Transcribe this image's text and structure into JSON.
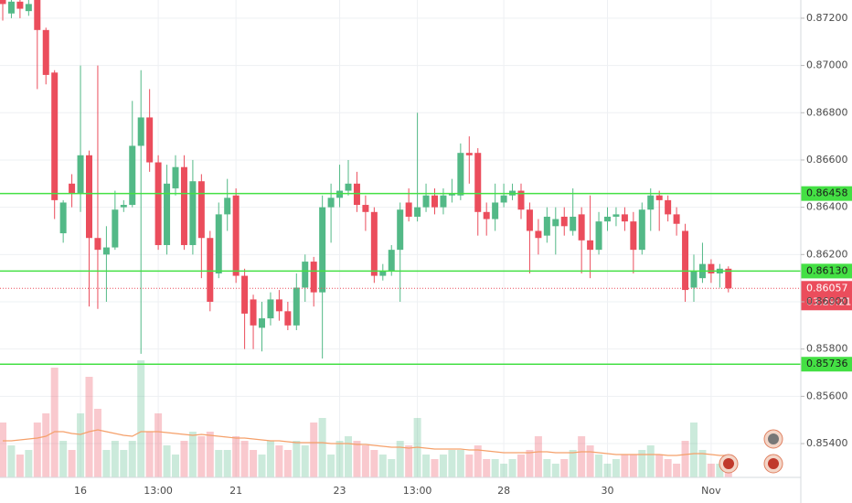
{
  "chart_data": {
    "type": "candlestick",
    "up_color": "#53b987",
    "down_color": "#eb4d5c",
    "level_color": "#44e044",
    "grid": true,
    "ylim": [
      0.85257,
      0.87277
    ],
    "yticks": [
      {
        "value": 0.872,
        "label": "0.87200"
      },
      {
        "value": 0.87,
        "label": "0.87000"
      },
      {
        "value": 0.868,
        "label": "0.86800"
      },
      {
        "value": 0.866,
        "label": "0.86600"
      },
      {
        "value": 0.864,
        "label": "0.86400"
      },
      {
        "value": 0.862,
        "label": "0.86200"
      },
      {
        "value": 0.86,
        "label": "0.86000"
      },
      {
        "value": 0.858,
        "label": "0.85800"
      },
      {
        "value": 0.856,
        "label": "0.85600"
      },
      {
        "value": 0.854,
        "label": "0.85400"
      }
    ],
    "levels": [
      {
        "value": 0.86458,
        "label": "0.86458"
      },
      {
        "value": 0.8613,
        "label": "0.86130"
      },
      {
        "value": 0.85736,
        "label": "0.85736"
      }
    ],
    "last_price": {
      "value": 0.86057,
      "label": "0.86057"
    },
    "countdown": "03:29:21",
    "categories": [
      null,
      null,
      null,
      null,
      null,
      null,
      null,
      null,
      null,
      "16",
      null,
      null,
      null,
      null,
      null,
      null,
      null,
      null,
      "13:00",
      null,
      null,
      null,
      null,
      null,
      null,
      null,
      null,
      "21",
      null,
      null,
      null,
      null,
      null,
      null,
      null,
      null,
      null,
      null,
      null,
      "23",
      null,
      null,
      null,
      null,
      null,
      null,
      null,
      null,
      "13:00",
      null,
      null,
      null,
      null,
      null,
      null,
      null,
      null,
      null,
      "28",
      null,
      null,
      null,
      null,
      null,
      null,
      null,
      null,
      null,
      null,
      null,
      "30",
      null,
      null,
      null,
      null,
      null,
      null,
      null,
      null,
      null,
      null,
      null,
      "Nov",
      null,
      null
    ],
    "open": [
      0.8728,
      0.8722,
      0.8727,
      0.8723,
      0.8728,
      0.8715,
      0.8697,
      0.8629,
      0.865,
      0.8646,
      0.8662,
      0.8627,
      0.862,
      0.8623,
      0.864,
      0.8641,
      0.8666,
      0.8678,
      0.8659,
      0.8624,
      0.8648,
      0.8657,
      0.8624,
      0.8651,
      0.8627,
      0.8612,
      0.8637,
      0.8645,
      0.8611,
      0.8601,
      0.8589,
      0.8593,
      0.8601,
      0.8596,
      0.859,
      0.8606,
      0.8617,
      0.8604,
      0.864,
      0.8644,
      0.8647,
      0.865,
      0.8641,
      0.8638,
      0.8611,
      0.8613,
      0.8622,
      0.8642,
      0.8636,
      0.864,
      0.8645,
      0.864,
      0.8645,
      0.8645,
      0.8663,
      0.8663,
      0.8638,
      0.8635,
      0.8642,
      0.8645,
      0.8647,
      0.8639,
      0.863,
      0.8628,
      0.8632,
      0.8636,
      0.863,
      0.8637,
      0.8626,
      0.8622,
      0.8634,
      0.8636,
      0.8637,
      0.8634,
      0.8622,
      0.8639,
      0.8645,
      0.8643,
      0.8637,
      0.863,
      0.8606,
      0.861,
      0.8616,
      0.8612,
      0.8614
    ],
    "high": [
      0.8729,
      0.8729,
      0.8729,
      0.8729,
      0.8729,
      0.8716,
      0.8698,
      0.8643,
      0.8654,
      0.87,
      0.8664,
      0.87,
      0.8632,
      0.8647,
      0.8643,
      0.8685,
      0.8698,
      0.869,
      0.8662,
      0.8658,
      0.8662,
      0.8662,
      0.866,
      0.8654,
      0.863,
      0.8642,
      0.8652,
      0.8648,
      0.8614,
      0.8603,
      0.86,
      0.8604,
      0.8605,
      0.86,
      0.8612,
      0.862,
      0.8619,
      0.8645,
      0.865,
      0.8658,
      0.866,
      0.8655,
      0.8645,
      0.864,
      0.8616,
      0.8624,
      0.8642,
      0.8648,
      0.868,
      0.865,
      0.8648,
      0.8648,
      0.8652,
      0.8667,
      0.867,
      0.8665,
      0.8642,
      0.865,
      0.865,
      0.865,
      0.865,
      0.8642,
      0.8635,
      0.864,
      0.864,
      0.864,
      0.8648,
      0.864,
      0.8645,
      0.8638,
      0.864,
      0.864,
      0.864,
      0.8638,
      0.8642,
      0.8648,
      0.8647,
      0.8645,
      0.864,
      0.8633,
      0.862,
      0.8625,
      0.8618,
      0.8616,
      0.8615
    ],
    "low": [
      0.8719,
      0.872,
      0.872,
      0.8721,
      0.869,
      0.8692,
      0.8635,
      0.8625,
      0.864,
      0.8638,
      0.8598,
      0.8597,
      0.86,
      0.8622,
      0.8638,
      0.864,
      0.8578,
      0.8655,
      0.8622,
      0.862,
      0.8645,
      0.8622,
      0.862,
      0.861,
      0.8596,
      0.861,
      0.863,
      0.8608,
      0.858,
      0.858,
      0.8579,
      0.859,
      0.8592,
      0.8588,
      0.8588,
      0.86,
      0.8598,
      0.8576,
      0.8625,
      0.864,
      0.8645,
      0.8638,
      0.863,
      0.8608,
      0.8609,
      0.8611,
      0.86,
      0.8634,
      0.8634,
      0.8638,
      0.8637,
      0.8637,
      0.8642,
      0.8643,
      0.865,
      0.8628,
      0.8628,
      0.863,
      0.864,
      0.8643,
      0.8635,
      0.8612,
      0.862,
      0.8625,
      0.862,
      0.8628,
      0.8628,
      0.8612,
      0.861,
      0.862,
      0.863,
      0.8632,
      0.863,
      0.8612,
      0.862,
      0.863,
      0.863,
      0.8634,
      0.8628,
      0.86,
      0.86,
      0.8608,
      0.8608,
      0.8606,
      0.8604
    ],
    "close": [
      0.8726,
      0.8727,
      0.8724,
      0.8726,
      0.8715,
      0.8696,
      0.8643,
      0.8642,
      0.8646,
      0.8662,
      0.8627,
      0.8622,
      0.8623,
      0.8639,
      0.8641,
      0.8666,
      0.8678,
      0.8659,
      0.8624,
      0.865,
      0.8657,
      0.8624,
      0.8651,
      0.8627,
      0.86,
      0.8637,
      0.8644,
      0.8611,
      0.8595,
      0.859,
      0.8593,
      0.8601,
      0.8596,
      0.859,
      0.8606,
      0.8617,
      0.8604,
      0.864,
      0.8644,
      0.8647,
      0.865,
      0.8641,
      0.8638,
      0.8611,
      0.8613,
      0.8622,
      0.8639,
      0.8636,
      0.864,
      0.8645,
      0.864,
      0.8645,
      0.8646,
      0.8663,
      0.8662,
      0.8638,
      0.8635,
      0.8642,
      0.8645,
      0.8647,
      0.8639,
      0.863,
      0.8627,
      0.8636,
      0.8635,
      0.8632,
      0.8636,
      0.8626,
      0.8622,
      0.8634,
      0.8636,
      0.8637,
      0.8634,
      0.8622,
      0.8639,
      0.8645,
      0.8643,
      0.8637,
      0.8633,
      0.8605,
      0.8613,
      0.8616,
      0.8612,
      0.8614,
      0.86057
    ],
    "volume": [
      60,
      35,
      25,
      30,
      60,
      70,
      120,
      40,
      30,
      70,
      110,
      75,
      30,
      40,
      30,
      40,
      128,
      50,
      70,
      35,
      25,
      40,
      50,
      45,
      50,
      30,
      30,
      45,
      40,
      30,
      25,
      40,
      35,
      30,
      40,
      35,
      60,
      65,
      25,
      40,
      45,
      40,
      35,
      30,
      25,
      20,
      40,
      35,
      65,
      25,
      20,
      25,
      30,
      30,
      25,
      35,
      20,
      20,
      15,
      20,
      25,
      30,
      45,
      20,
      15,
      20,
      30,
      45,
      35,
      25,
      15,
      20,
      25,
      25,
      30,
      35,
      25,
      20,
      15,
      40,
      60,
      30,
      15,
      15,
      15
    ],
    "volume_ma": [
      40,
      40,
      41,
      42,
      43,
      45,
      50,
      50,
      48,
      47,
      50,
      52,
      50,
      48,
      46,
      45,
      50,
      50,
      50,
      49,
      48,
      47,
      46,
      47,
      46,
      45,
      44,
      43,
      43,
      42,
      41,
      40,
      40,
      39,
      38,
      38,
      38,
      38,
      37,
      37,
      37,
      36,
      36,
      35,
      34,
      33,
      33,
      32,
      33,
      32,
      31,
      31,
      31,
      31,
      30,
      30,
      29,
      28,
      27,
      27,
      27,
      27,
      28,
      28,
      27,
      27,
      27,
      28,
      28,
      27,
      26,
      25,
      25,
      25,
      25,
      25,
      25,
      24,
      24,
      25,
      26,
      26,
      25,
      24,
      24
    ]
  }
}
